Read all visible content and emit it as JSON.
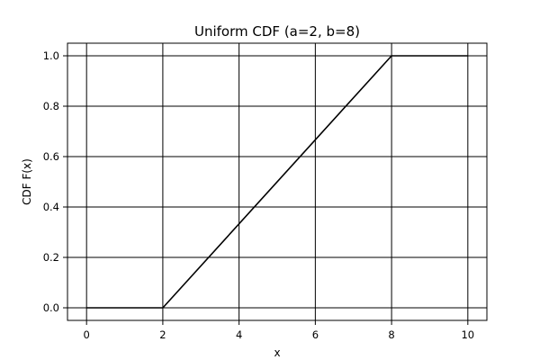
{
  "chart_data": {
    "type": "line",
    "title": "Uniform CDF (a=2, b=8)",
    "xlabel": "x",
    "ylabel": "CDF F(x)",
    "xlim": [
      -0.5,
      10.5
    ],
    "ylim": [
      -0.05,
      1.05
    ],
    "x_ticks": [
      0,
      2,
      4,
      6,
      8,
      10
    ],
    "y_ticks": [
      0.0,
      0.2,
      0.4,
      0.6,
      0.8,
      1.0
    ],
    "x_tick_labels": [
      "0",
      "2",
      "4",
      "6",
      "8",
      "10"
    ],
    "y_tick_labels": [
      "0.0",
      "0.2",
      "0.4",
      "0.6",
      "0.8",
      "1.0"
    ],
    "grid": true,
    "line_color": "#000000",
    "grid_color": "#000000",
    "series": [
      {
        "x": [
          0,
          2,
          8,
          10
        ],
        "y": [
          0,
          0,
          1,
          1
        ]
      }
    ]
  }
}
